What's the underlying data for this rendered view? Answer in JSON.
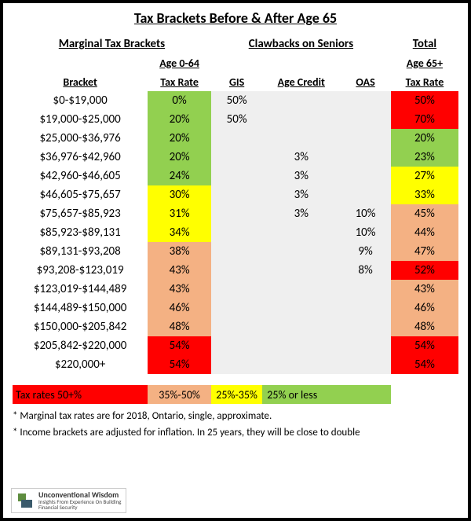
{
  "title": "Tax Brackets Before & After Age 65",
  "groups": {
    "marginal": "Marginal Tax Brackets",
    "clawbacks": "Clawbacks on Seniors",
    "total": "Total"
  },
  "sub": {
    "age064": "Age 0-64",
    "age65": "Age 65+",
    "bracket": "Bracket",
    "taxrate": "Tax Rate",
    "gis": "GIS",
    "agecredit": "Age Credit",
    "oas": "OAS",
    "taxrate2": "Tax Rate"
  },
  "colors": {
    "red": "#ff0000",
    "orange": "#f4b183",
    "yellow": "#ffff00",
    "green": "#92d050",
    "gray": "#efefef"
  },
  "rows": [
    {
      "bracket": "$0-$19,000",
      "rate": "0%",
      "rate_c": "green",
      "gis": "50%",
      "gis_c": "gray",
      "ac": "",
      "ac_c": "gray",
      "oas": "",
      "oas_c": "gray",
      "tot": "50%",
      "tot_c": "red"
    },
    {
      "bracket": "$19,000-$25,000",
      "rate": "20%",
      "rate_c": "green",
      "gis": "50%",
      "gis_c": "gray",
      "ac": "",
      "ac_c": "gray",
      "oas": "",
      "oas_c": "gray",
      "tot": "70%",
      "tot_c": "red"
    },
    {
      "bracket": "$25,000-$36,976",
      "rate": "20%",
      "rate_c": "green",
      "gis": "",
      "gis_c": "gray",
      "ac": "",
      "ac_c": "gray",
      "oas": "",
      "oas_c": "gray",
      "tot": "20%",
      "tot_c": "green"
    },
    {
      "bracket": "$36,976-$42,960",
      "rate": "20%",
      "rate_c": "green",
      "gis": "",
      "gis_c": "gray",
      "ac": "3%",
      "ac_c": "gray",
      "oas": "",
      "oas_c": "gray",
      "tot": "23%",
      "tot_c": "green"
    },
    {
      "bracket": "$42,960-$46,605",
      "rate": "24%",
      "rate_c": "green",
      "gis": "",
      "gis_c": "gray",
      "ac": "3%",
      "ac_c": "gray",
      "oas": "",
      "oas_c": "gray",
      "tot": "27%",
      "tot_c": "yellow"
    },
    {
      "bracket": "$46,605-$75,657",
      "rate": "30%",
      "rate_c": "yellow",
      "gis": "",
      "gis_c": "gray",
      "ac": "3%",
      "ac_c": "gray",
      "oas": "",
      "oas_c": "gray",
      "tot": "33%",
      "tot_c": "yellow"
    },
    {
      "bracket": "$75,657-$85,923",
      "rate": "31%",
      "rate_c": "yellow",
      "gis": "",
      "gis_c": "gray",
      "ac": "3%",
      "ac_c": "gray",
      "oas": "10%",
      "oas_c": "gray",
      "tot": "45%",
      "tot_c": "orange"
    },
    {
      "bracket": "$85,923-$89,131",
      "rate": "34%",
      "rate_c": "yellow",
      "gis": "",
      "gis_c": "gray",
      "ac": "",
      "ac_c": "gray",
      "oas": "10%",
      "oas_c": "gray",
      "tot": "44%",
      "tot_c": "orange"
    },
    {
      "bracket": "$89,131-$93,208",
      "rate": "38%",
      "rate_c": "orange",
      "gis": "",
      "gis_c": "gray",
      "ac": "",
      "ac_c": "gray",
      "oas": "9%",
      "oas_c": "gray",
      "tot": "47%",
      "tot_c": "orange"
    },
    {
      "bracket": "$93,208-$123,019",
      "rate": "43%",
      "rate_c": "orange",
      "gis": "",
      "gis_c": "gray",
      "ac": "",
      "ac_c": "gray",
      "oas": "8%",
      "oas_c": "gray",
      "tot": "52%",
      "tot_c": "red"
    },
    {
      "bracket": "$123,019-$144,489",
      "rate": "43%",
      "rate_c": "orange",
      "gis": "",
      "gis_c": "gray",
      "ac": "",
      "ac_c": "gray",
      "oas": "",
      "oas_c": "gray",
      "tot": "43%",
      "tot_c": "orange"
    },
    {
      "bracket": "$144,489-$150,000",
      "rate": "46%",
      "rate_c": "orange",
      "gis": "",
      "gis_c": "gray",
      "ac": "",
      "ac_c": "gray",
      "oas": "",
      "oas_c": "gray",
      "tot": "46%",
      "tot_c": "orange"
    },
    {
      "bracket": "$150,000-$205,842",
      "rate": "48%",
      "rate_c": "orange",
      "gis": "",
      "gis_c": "gray",
      "ac": "",
      "ac_c": "gray",
      "oas": "",
      "oas_c": "gray",
      "tot": "48%",
      "tot_c": "orange"
    },
    {
      "bracket": "$205,842-$220,000",
      "rate": "54%",
      "rate_c": "red",
      "gis": "",
      "gis_c": "gray",
      "ac": "",
      "ac_c": "gray",
      "oas": "",
      "oas_c": "gray",
      "tot": "54%",
      "tot_c": "red"
    },
    {
      "bracket": "$220,000+",
      "rate": "54%",
      "rate_c": "red",
      "gis": "",
      "gis_c": "gray",
      "ac": "",
      "ac_c": "gray",
      "oas": "",
      "oas_c": "gray",
      "tot": "54%",
      "tot_c": "red"
    }
  ],
  "legend": {
    "label": "Tax rates 50+%",
    "label_c": "red",
    "l1": "35%-50%",
    "l1_c": "orange",
    "l2": "25%-35%",
    "l2_c": "yellow",
    "l3": "25% or less",
    "l3_c": "green"
  },
  "notes": {
    "n1": "* Marginal tax rates are for 2018, Ontario, single, approximate.",
    "n2": "* Income brackets are adjusted for inflation. In 25 years, they will be close to double"
  },
  "logo": {
    "brand": "Unconventional Wisdom",
    "tag": "Insights From Experience On Building\nFinancial Security",
    "mark_color1": "#5e8d3f",
    "mark_color2": "#3a5a6b"
  }
}
